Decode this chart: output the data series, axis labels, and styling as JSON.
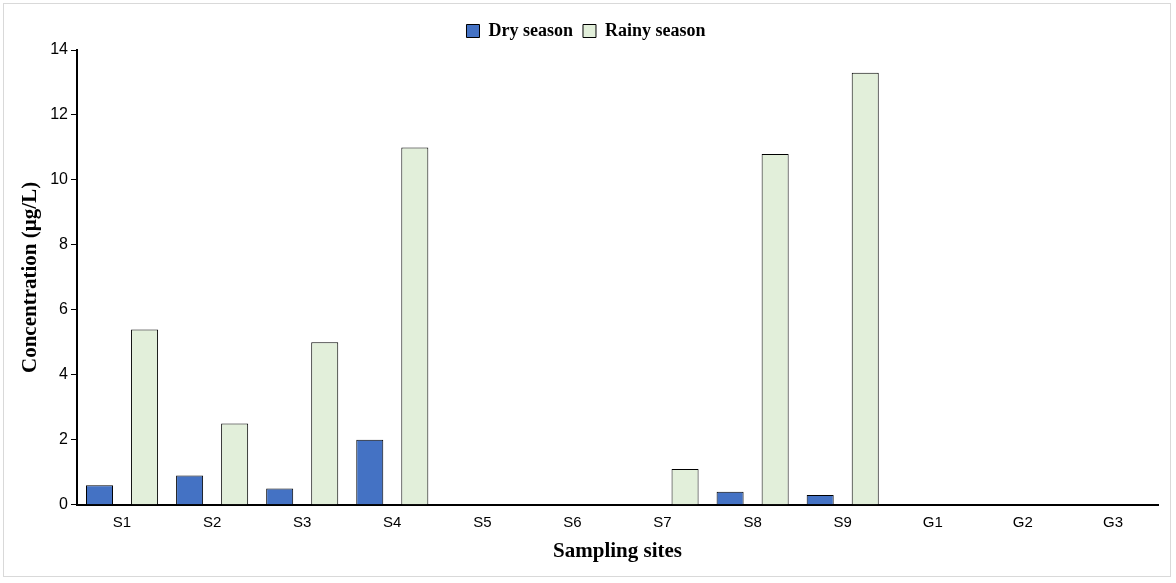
{
  "chart_data": {
    "type": "bar",
    "xlabel": "Sampling sites",
    "ylabel": "Concentration (µg/L)",
    "categories": [
      "S1",
      "S2",
      "S3",
      "S4",
      "S5",
      "S6",
      "S7",
      "S8",
      "S9",
      "G1",
      "G2",
      "G3"
    ],
    "series": [
      {
        "name": "Dry season",
        "color": "#4472c4",
        "values": [
          0.6,
          0.9,
          0.5,
          2.0,
          0,
          0,
          0,
          0.4,
          0.3,
          0,
          0,
          0
        ]
      },
      {
        "name": "Rainy season",
        "color": "#e2efda",
        "values": [
          5.4,
          2.5,
          5.0,
          11.0,
          0,
          0,
          1.1,
          10.8,
          13.3,
          0,
          0,
          0
        ]
      }
    ],
    "ylim": [
      0,
      14
    ],
    "yticks": [
      0,
      2,
      4,
      6,
      8,
      10,
      12,
      14
    ],
    "grid": false,
    "legend": "top"
  }
}
